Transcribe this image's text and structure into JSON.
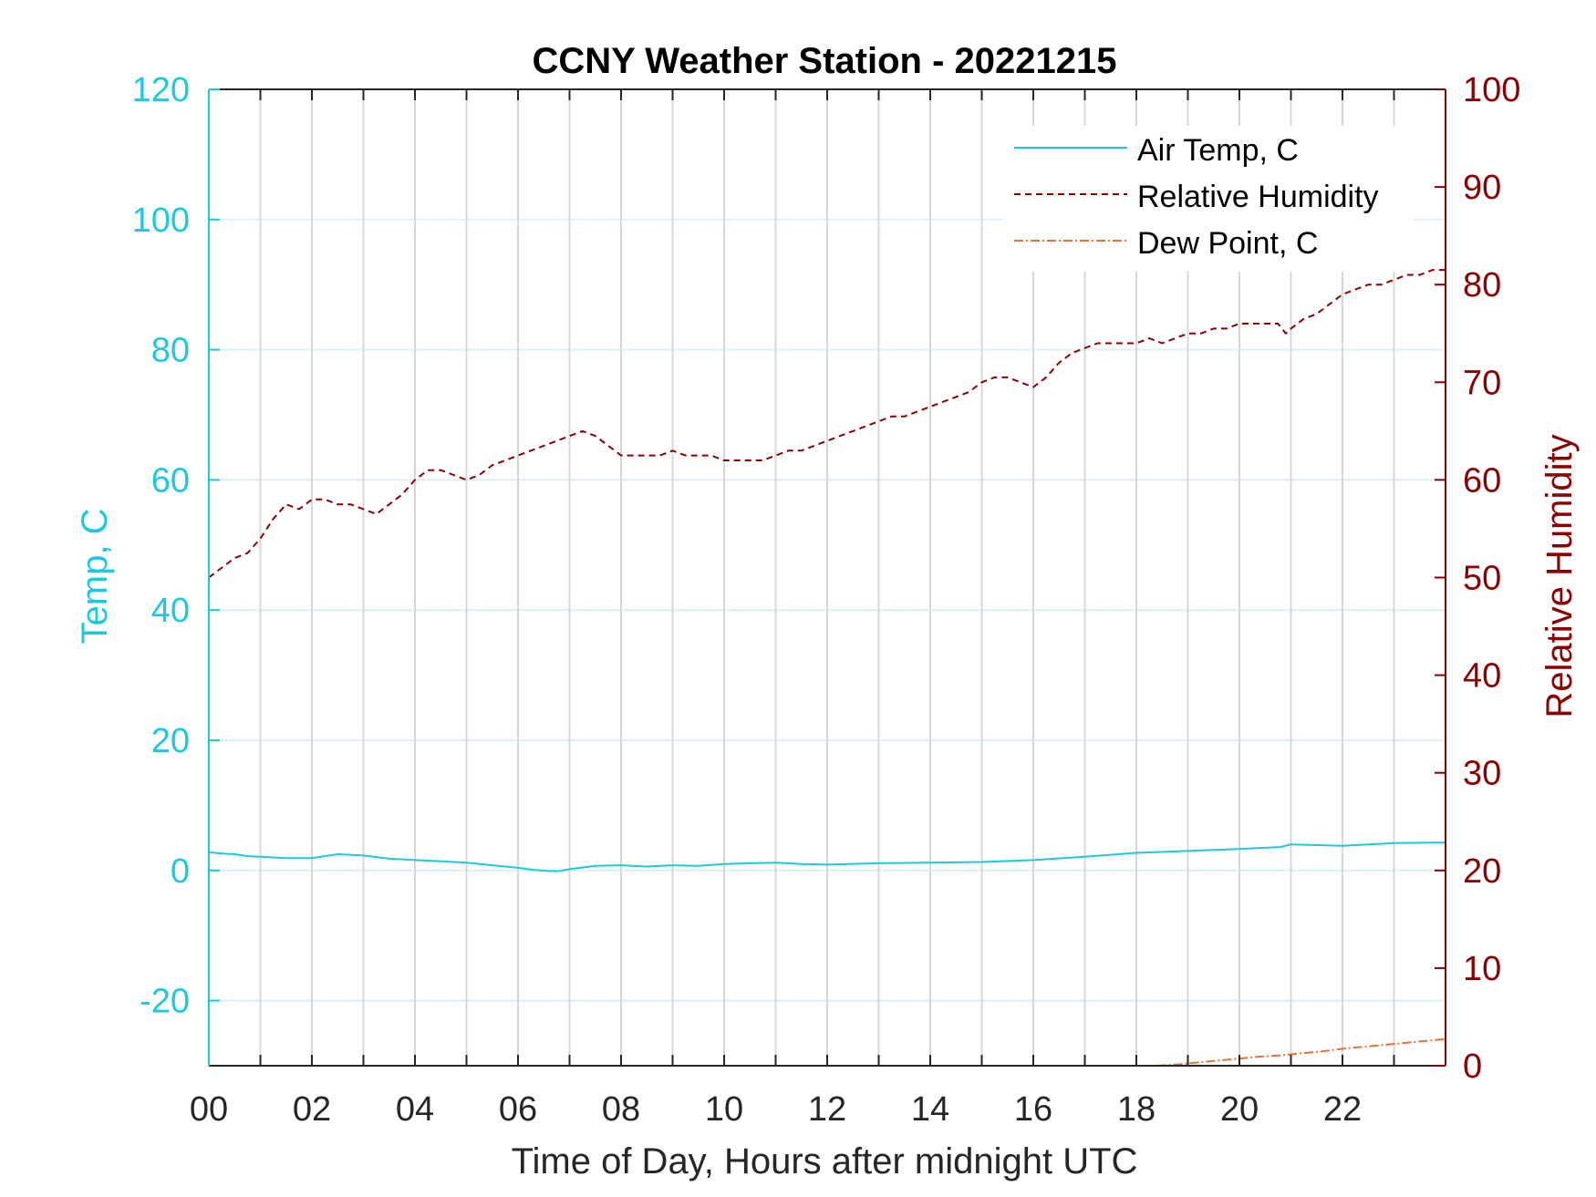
{
  "chart_data": {
    "type": "line",
    "title": "CCNY Weather Station - 20221215",
    "xlabel": "Time of Day, Hours after midnight UTC",
    "ylabel_left": "Temp, C",
    "ylabel_right": "Relative Humidity",
    "xlim": [
      0,
      24
    ],
    "ylim_left": [
      -30,
      120
    ],
    "ylim_right": [
      0,
      100
    ],
    "x_tick_values": [
      0,
      2,
      4,
      6,
      8,
      10,
      12,
      14,
      16,
      18,
      20,
      22
    ],
    "x_tick_labels": [
      "00",
      "02",
      "04",
      "06",
      "08",
      "10",
      "12",
      "14",
      "16",
      "18",
      "20",
      "22"
    ],
    "y_left_tick_values": [
      -20,
      0,
      20,
      40,
      60,
      80,
      100,
      120
    ],
    "y_left_tick_labels": [
      "-20",
      "0",
      "20",
      "40",
      "60",
      "80",
      "100",
      "120"
    ],
    "y_right_tick_values": [
      0,
      10,
      20,
      30,
      40,
      50,
      60,
      70,
      80,
      90,
      100
    ],
    "y_right_tick_labels": [
      "0",
      "10",
      "20",
      "30",
      "40",
      "50",
      "60",
      "70",
      "80",
      "90",
      "100"
    ],
    "grid": true,
    "legend_position": "top-right",
    "colors": {
      "left_axis": "#1cc9de",
      "right_axis": "#8b0000",
      "dew_point": "#e8703a",
      "grid_vertical": "#d4d8dc",
      "grid_horizontal": "#d8f2f7",
      "frame": "#262626"
    },
    "series": [
      {
        "name": "Air Temp, C",
        "axis": "left",
        "style": "solid",
        "x": [
          0,
          0.25,
          0.5,
          0.75,
          1,
          1.25,
          1.5,
          2,
          2.5,
          3,
          3.5,
          4,
          4.5,
          5,
          5.5,
          6,
          6.3,
          6.6,
          6.8,
          7,
          7.5,
          8,
          8.5,
          9,
          9.5,
          10,
          10.5,
          11,
          11.5,
          12,
          13,
          14,
          15,
          16,
          17,
          18,
          19,
          20,
          20.8,
          21,
          22,
          23,
          24
        ],
        "y": [
          2.8,
          2.6,
          2.5,
          2.2,
          2.1,
          2.0,
          1.9,
          1.9,
          2.5,
          2.3,
          1.8,
          1.6,
          1.4,
          1.2,
          0.8,
          0.4,
          0.1,
          -0.1,
          -0.1,
          0.2,
          0.7,
          0.8,
          0.6,
          0.8,
          0.7,
          1.0,
          1.1,
          1.2,
          1.0,
          0.9,
          1.1,
          1.2,
          1.3,
          1.6,
          2.1,
          2.7,
          3.0,
          3.3,
          3.6,
          4.0,
          3.8,
          4.2,
          4.3
        ]
      },
      {
        "name": "Relative Humidity",
        "axis": "right",
        "style": "dashed",
        "x": [
          0,
          0.25,
          0.5,
          0.75,
          1,
          1.25,
          1.5,
          1.75,
          2,
          2.25,
          2.5,
          2.75,
          3,
          3.25,
          3.5,
          3.75,
          4,
          4.25,
          4.5,
          4.75,
          5,
          5.25,
          5.5,
          5.75,
          6,
          6.25,
          6.5,
          6.75,
          7,
          7.25,
          7.5,
          7.75,
          8,
          8.25,
          8.5,
          8.75,
          9,
          9.25,
          9.5,
          9.75,
          10,
          10.25,
          10.5,
          10.75,
          11,
          11.25,
          11.5,
          11.75,
          12,
          12.25,
          12.5,
          12.75,
          13,
          13.25,
          13.5,
          13.75,
          14,
          14.25,
          14.5,
          14.75,
          15,
          15.25,
          15.5,
          15.75,
          16,
          16.25,
          16.5,
          16.75,
          17,
          17.25,
          17.5,
          17.75,
          18,
          18.25,
          18.5,
          18.75,
          19,
          19.25,
          19.5,
          19.75,
          20,
          20.25,
          20.5,
          20.75,
          20.9,
          21,
          21.25,
          21.5,
          21.75,
          22,
          22.25,
          22.5,
          22.75,
          23,
          23.25,
          23.5,
          23.75,
          24
        ],
        "y": [
          50,
          51,
          52,
          52.5,
          54,
          56,
          57.5,
          57,
          58,
          58,
          57.5,
          57.5,
          57,
          56.5,
          57.5,
          58.5,
          60,
          61,
          61,
          60.5,
          60,
          60.5,
          61.5,
          62,
          62.5,
          63,
          63.5,
          64,
          64.5,
          65,
          64.5,
          63.5,
          62.5,
          62.5,
          62.5,
          62.5,
          63,
          62.5,
          62.5,
          62.5,
          62,
          62,
          62,
          62,
          62.5,
          63,
          63,
          63.5,
          64,
          64.5,
          65,
          65.5,
          66,
          66.5,
          66.5,
          67,
          67.5,
          68,
          68.5,
          69,
          70,
          70.5,
          70.5,
          70,
          69.5,
          70.5,
          72,
          73,
          73.5,
          74,
          74,
          74,
          74,
          74.5,
          74,
          74.5,
          75,
          75,
          75.5,
          75.5,
          76,
          76,
          76,
          76,
          75,
          75.5,
          76.5,
          77,
          78,
          79,
          79.5,
          80,
          80,
          80.5,
          81,
          81,
          81.5,
          81.5
        ]
      },
      {
        "name": "Dew Point, C",
        "axis": "left",
        "style": "dash-dot",
        "x": [
          18.4,
          18.8,
          19.2,
          19.6,
          20,
          20.4,
          20.8,
          21.2,
          21.6,
          22,
          22.4,
          22.8,
          23.2,
          23.6,
          24
        ],
        "y": [
          -30,
          -29.8,
          -29.5,
          -29.2,
          -28.9,
          -28.6,
          -28.4,
          -28.1,
          -27.8,
          -27.4,
          -27.1,
          -26.8,
          -26.5,
          -26.2,
          -25.9
        ]
      }
    ]
  }
}
